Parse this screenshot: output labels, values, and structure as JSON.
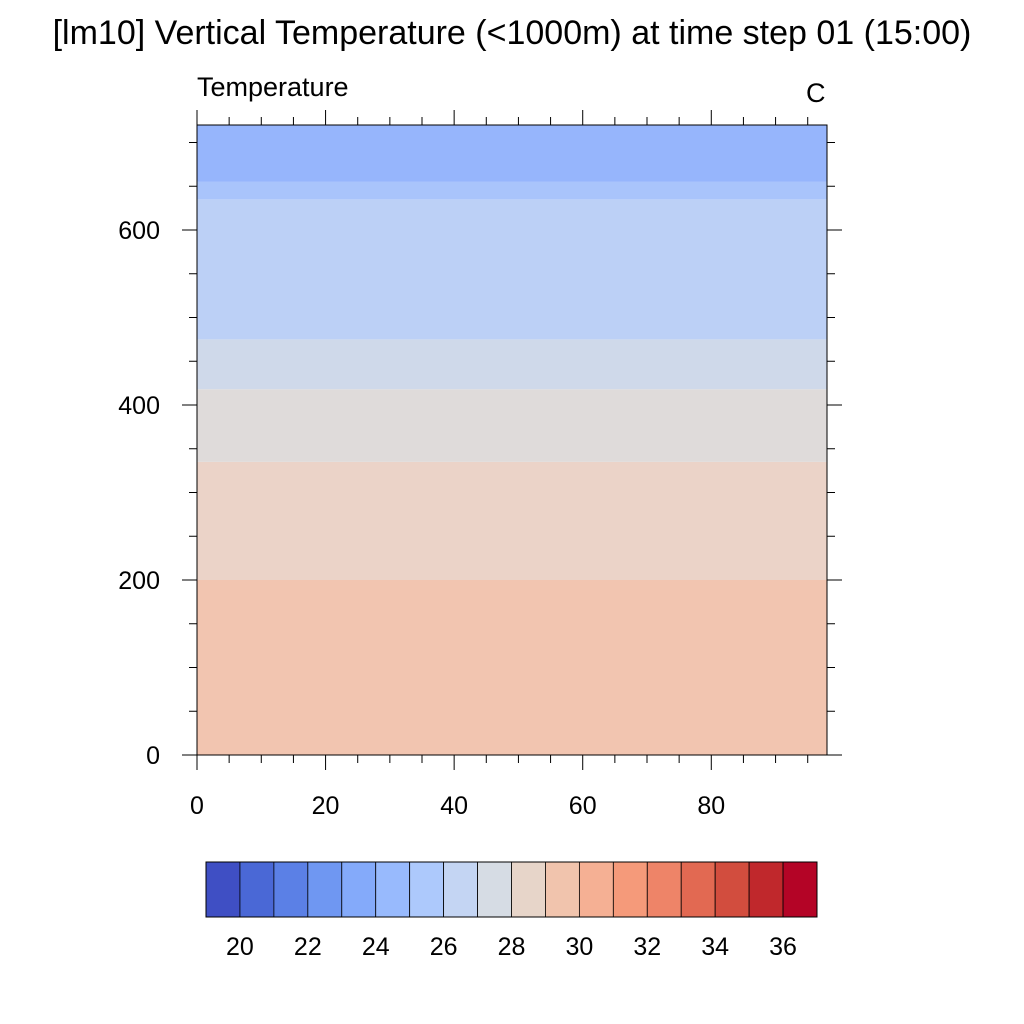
{
  "chart_data": {
    "type": "heatmap",
    "title": "[lm10] Vertical Temperature (<1000m) at time step 01 (15:00)",
    "left_string": "Temperature",
    "right_string": "C",
    "xlim": [
      0,
      98
    ],
    "ylim": [
      0,
      720
    ],
    "x_ticks": [
      0,
      20,
      40,
      60,
      80
    ],
    "y_ticks": [
      0,
      200,
      400,
      600
    ],
    "bands": [
      {
        "y0": 0,
        "y1": 200,
        "color": "#f2c5b0"
      },
      {
        "y0": 200,
        "y1": 335,
        "color": "#ebd3c8"
      },
      {
        "y0": 335,
        "y1": 418,
        "color": "#dfdbda"
      },
      {
        "y0": 418,
        "y1": 475,
        "color": "#cfd9ea"
      },
      {
        "y0": 475,
        "y1": 635,
        "color": "#bcd0f6"
      },
      {
        "y0": 635,
        "y1": 655,
        "color": "#a9c4fb"
      },
      {
        "y0": 655,
        "y1": 720,
        "color": "#96b5fc"
      }
    ],
    "colorbar": {
      "colors": [
        "#3f4fc4",
        "#4a68d6",
        "#5b80e6",
        "#6f97f2",
        "#84aafa",
        "#98bafd",
        "#adc9fc",
        "#c4d5f3",
        "#d6dce4",
        "#e7d5c9",
        "#f1c4ad",
        "#f5b094",
        "#f59a7a",
        "#ee8468",
        "#e26952",
        "#d24d3e",
        "#c0282c",
        "#b40426"
      ],
      "labels": [
        "20",
        "22",
        "24",
        "26",
        "28",
        "30",
        "32",
        "34",
        "36"
      ]
    }
  }
}
